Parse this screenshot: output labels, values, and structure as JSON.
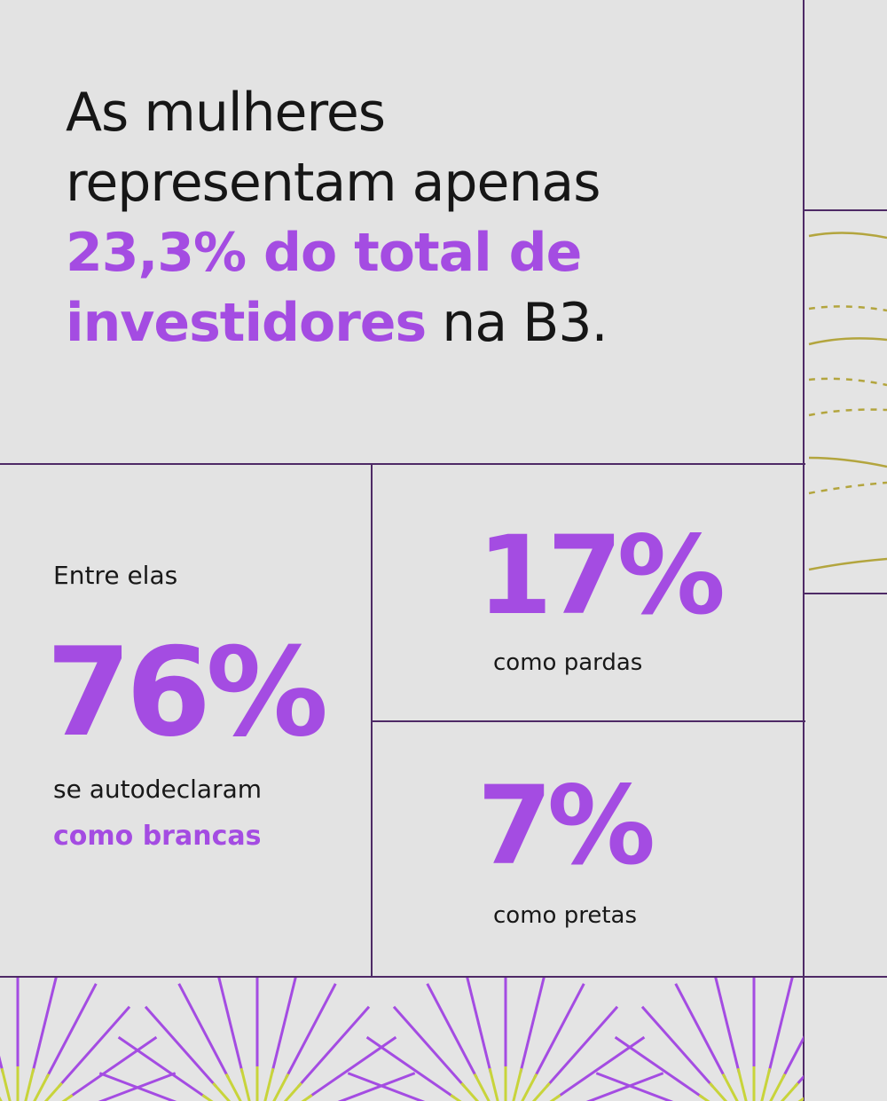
{
  "headline": {
    "line1": "As mulheres",
    "line2": "representam apenas",
    "highlight_a": "23,3% do total de",
    "highlight_b": "investidores",
    "tail": " na B3."
  },
  "stats": {
    "intro": "Entre elas",
    "brancas": {
      "value": "76%",
      "label_line1": "se autodeclaram",
      "label_line2": "como brancas"
    },
    "pardas": {
      "value": "17%",
      "label": "como pardas"
    },
    "pretas": {
      "value": "7%",
      "label": "como pretas"
    }
  },
  "colors": {
    "accent": "#a44ce2",
    "text": "#161616",
    "background": "#e3e3e3",
    "divider": "#4e2a66",
    "ray_yellow": "#c8d43a",
    "arc_olive": "#b3a53e"
  }
}
